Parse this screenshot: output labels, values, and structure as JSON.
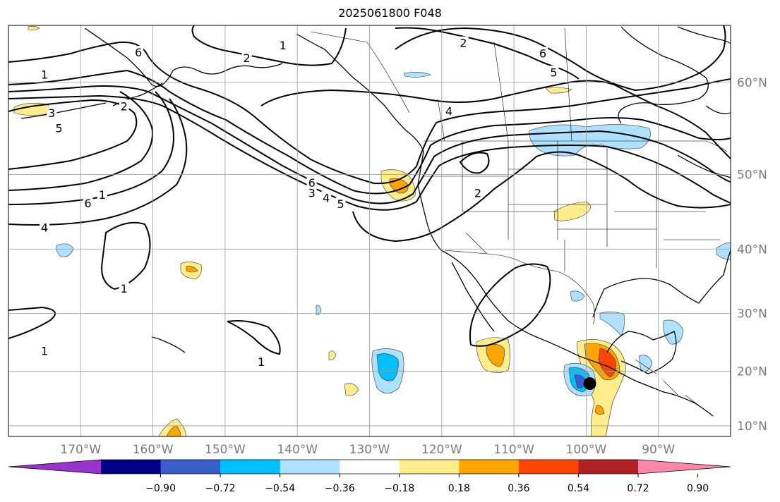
{
  "title": "2025061800 F048",
  "map": {
    "lon_ticks": [
      {
        "lon": -170,
        "label": "170°W"
      },
      {
        "lon": -160,
        "label": "160°W"
      },
      {
        "lon": -150,
        "label": "150°W"
      },
      {
        "lon": -140,
        "label": "140°W"
      },
      {
        "lon": -130,
        "label": "130°W"
      },
      {
        "lon": -120,
        "label": "120°W"
      },
      {
        "lon": -110,
        "label": "110°W"
      },
      {
        "lon": -100,
        "label": "100°W"
      },
      {
        "lon": -90,
        "label": "90°W"
      }
    ],
    "lat_ticks": [
      {
        "lat": 60,
        "label": "60°N"
      },
      {
        "lat": 50,
        "label": "50°N"
      },
      {
        "lat": 40,
        "label": "40°N"
      },
      {
        "lat": 30,
        "label": "30°N"
      },
      {
        "lat": 20,
        "label": "20°N"
      },
      {
        "lat": 10,
        "label": "10°N"
      }
    ],
    "extent": {
      "lon_min": -180,
      "lon_max": -80,
      "lat_min": 8,
      "lat_max": 65
    },
    "marker": {
      "lon": -99.5,
      "lat": 17.8
    }
  },
  "contour_labels": [
    {
      "text": "1",
      "lon": -175,
      "lat": 60.7
    },
    {
      "text": "3",
      "lon": -174,
      "lat": 56.9
    },
    {
      "text": "5",
      "lon": -173,
      "lat": 55.3
    },
    {
      "text": "2",
      "lon": -164,
      "lat": 57.6
    },
    {
      "text": "6",
      "lon": -162,
      "lat": 62.7
    },
    {
      "text": "2",
      "lon": -147,
      "lat": 62.2
    },
    {
      "text": "1",
      "lon": -142,
      "lat": 63.3
    },
    {
      "text": "6",
      "lon": -138,
      "lat": 48.9
    },
    {
      "text": "3",
      "lon": -138,
      "lat": 47.6
    },
    {
      "text": "4",
      "lon": -136,
      "lat": 47.0
    },
    {
      "text": "5",
      "lon": -134,
      "lat": 46.2
    },
    {
      "text": "6",
      "lon": -169,
      "lat": 46.3
    },
    {
      "text": "1",
      "lon": -167,
      "lat": 47.4
    },
    {
      "text": "4",
      "lon": -175,
      "lat": 43.0
    },
    {
      "text": "1",
      "lon": -164,
      "lat": 33.9
    },
    {
      "text": "1",
      "lon": -175,
      "lat": 23.5
    },
    {
      "text": "1",
      "lon": -145,
      "lat": 21.6
    },
    {
      "text": "2",
      "lon": -117,
      "lat": 63.5
    },
    {
      "text": "6",
      "lon": -106,
      "lat": 62.6
    },
    {
      "text": "5",
      "lon": -104.5,
      "lat": 60.9
    },
    {
      "text": "4",
      "lon": -119,
      "lat": 57.1
    },
    {
      "text": "2",
      "lon": -115,
      "lat": 47.6
    }
  ],
  "colorbar": {
    "colors": [
      "#9933cc",
      "#000088",
      "#3a5fcd",
      "#00bfff",
      "#aee0ff",
      "#ffffff",
      "#ffec8b",
      "#ffa500",
      "#ff4500",
      "#b22222",
      "#ff88aa"
    ],
    "tick_labels": [
      "−0.90",
      "−0.72",
      "−0.54",
      "−0.36",
      "−0.18",
      "0.18",
      "0.36",
      "0.54",
      "0.72",
      "0.90"
    ]
  }
}
